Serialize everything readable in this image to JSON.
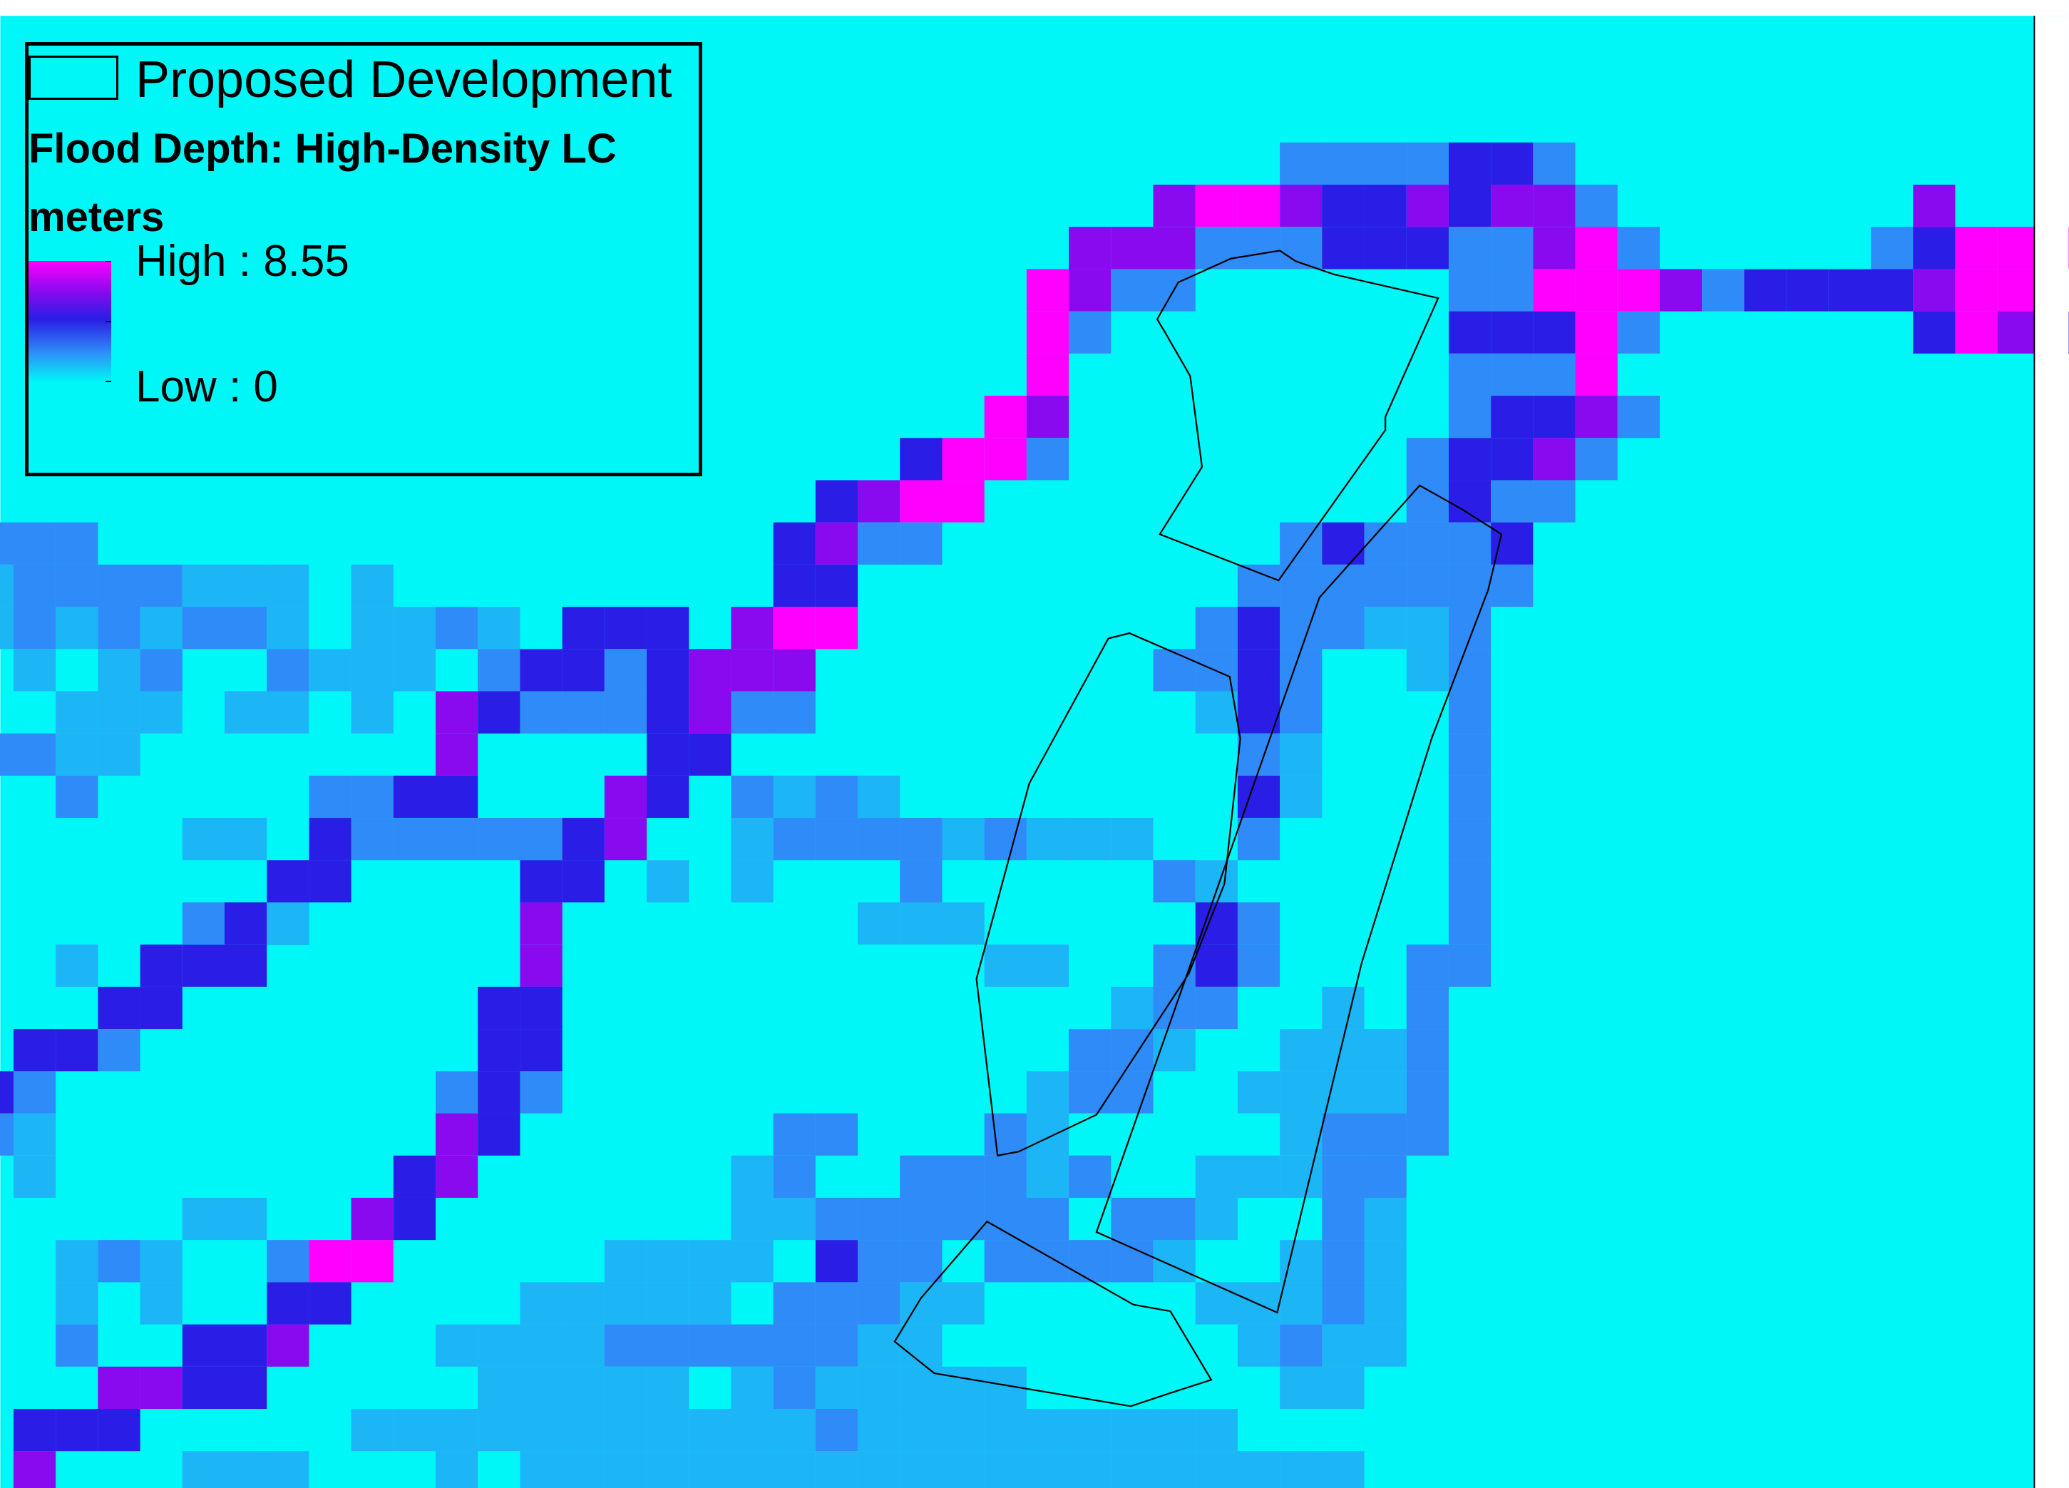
{
  "map": {
    "background_color": "#00f7f7",
    "outline_color": "#000000",
    "color_ramp": [
      "#00f7f7",
      "#2f8bf7",
      "#2a1de6",
      "#8a0af0",
      "#ff00ff"
    ],
    "flood_min_value": 0,
    "flood_max_value": 8.55
  },
  "legend": {
    "development_label": "Proposed Development",
    "title": "Flood Depth: High-Density LC",
    "units": "meters",
    "high_label": "High : 8.55",
    "low_label": "Low : 0"
  }
}
